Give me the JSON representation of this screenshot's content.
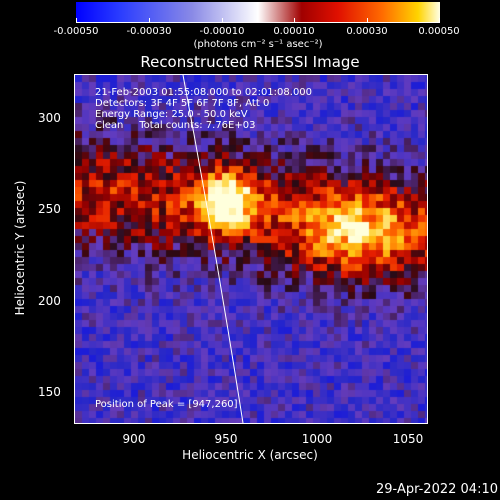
{
  "colorbar": {
    "ticks": [
      "-0.00050",
      "-0.00030",
      "-0.00010",
      "0.00010",
      "0.00030",
      "0.00050"
    ],
    "units": "(photons cm⁻² s⁻¹ asec⁻²)"
  },
  "title": "Reconstructed RHESSI Image",
  "annotations": {
    "time_range": "21-Feb-2003 01:55:08.000 to 02:01:08.000",
    "detectors": "Detectors: 3F 4F 5F 6F 7F 8F, Att 0",
    "energy": "Energy Range: 25.0 - 50.0 keV",
    "clean": "Clean     Total counts: 7.76E+03",
    "peak": "Position of Peak = [947,260]"
  },
  "axes": {
    "xlabel": "Heliocentric X (arcsec)",
    "ylabel": "Heliocentric Y (arcsec)",
    "xticks": [
      "900",
      "950",
      "1000",
      "1050"
    ],
    "yticks": [
      "150",
      "200",
      "250",
      "300"
    ],
    "xlim": [
      868,
      1060
    ],
    "ylim": [
      132,
      322
    ]
  },
  "timestamp": "29-Apr-2022 04:10",
  "colors": {
    "background": "#000000",
    "limb_line": "#ffffff"
  }
}
